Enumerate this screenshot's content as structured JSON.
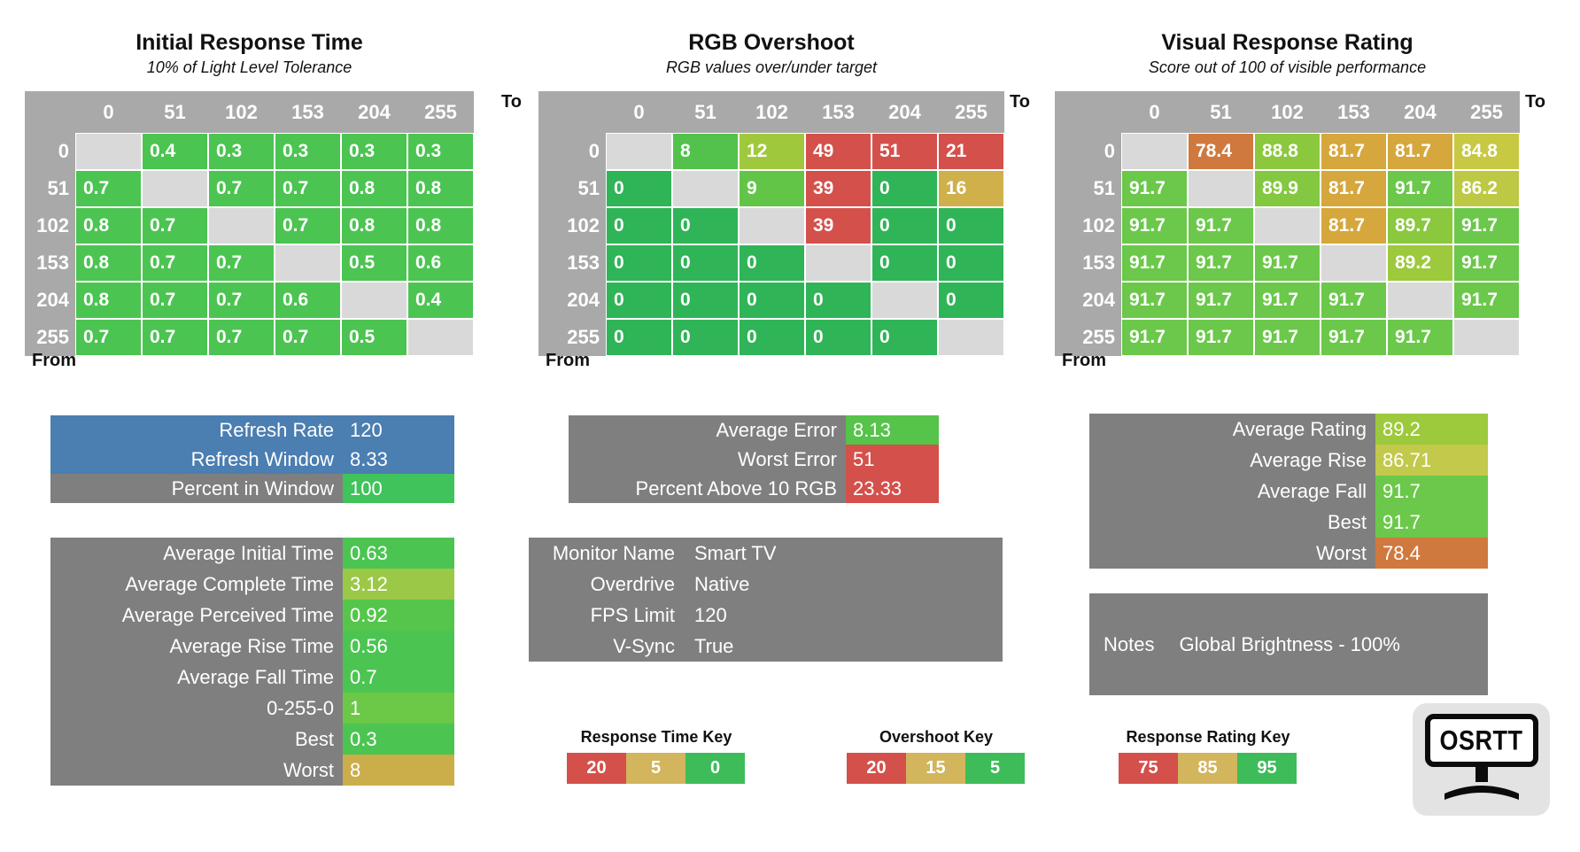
{
  "chart_data": [
    {
      "type": "heatmap",
      "title": "Initial Response Time",
      "subtitle": "10% of Light Level Tolerance",
      "to_label": "To",
      "from_label": "From",
      "levels": [
        "0",
        "51",
        "102",
        "153",
        "204",
        "255"
      ],
      "cells": [
        [
          null,
          "0.4",
          "0.3",
          "0.3",
          "0.3",
          "0.3"
        ],
        [
          "0.7",
          null,
          "0.7",
          "0.7",
          "0.8",
          "0.8"
        ],
        [
          "0.8",
          "0.7",
          null,
          "0.7",
          "0.8",
          "0.8"
        ],
        [
          "0.8",
          "0.7",
          "0.7",
          null,
          "0.5",
          "0.6"
        ],
        [
          "0.8",
          "0.7",
          "0.7",
          "0.6",
          null,
          "0.4"
        ],
        [
          "0.7",
          "0.7",
          "0.7",
          "0.7",
          "0.5",
          null
        ]
      ],
      "colors": [
        [
          null,
          "#4CC452",
          "#4CC452",
          "#4CC452",
          "#4CC452",
          "#4CC452"
        ],
        [
          "#4CC452",
          null,
          "#4CC452",
          "#4CC452",
          "#4CC452",
          "#4CC452"
        ],
        [
          "#4CC452",
          "#4CC452",
          null,
          "#4CC452",
          "#4CC452",
          "#4CC452"
        ],
        [
          "#4CC452",
          "#4CC452",
          "#4CC452",
          null,
          "#4CC452",
          "#4CC452"
        ],
        [
          "#4CC452",
          "#4CC452",
          "#4CC452",
          "#4CC452",
          null,
          "#4CC452"
        ],
        [
          "#4CC452",
          "#4CC452",
          "#4CC452",
          "#4CC452",
          "#4CC452",
          null
        ]
      ]
    },
    {
      "type": "heatmap",
      "title": "RGB Overshoot",
      "subtitle": "RGB values over/under target",
      "to_label": "To",
      "from_label": "From",
      "levels": [
        "0",
        "51",
        "102",
        "153",
        "204",
        "255"
      ],
      "cells": [
        [
          null,
          "8",
          "12",
          "49",
          "51",
          "21"
        ],
        [
          "0",
          null,
          "9",
          "39",
          "0",
          "16"
        ],
        [
          "0",
          "0",
          null,
          "39",
          "0",
          "0"
        ],
        [
          "0",
          "0",
          "0",
          null,
          "0",
          "0"
        ],
        [
          "0",
          "0",
          "0",
          "0",
          null,
          "0"
        ],
        [
          "0",
          "0",
          "0",
          "0",
          "0",
          null
        ]
      ],
      "colors": [
        [
          null,
          "#53C24C",
          "#A0C83D",
          "#D4504B",
          "#D4504B",
          "#D4504B"
        ],
        [
          "#2FB457",
          null,
          "#62C547",
          "#D4504B",
          "#2FB457",
          "#CFB04B"
        ],
        [
          "#2FB457",
          "#2FB457",
          null,
          "#D4504B",
          "#2FB457",
          "#2FB457"
        ],
        [
          "#2FB457",
          "#2FB457",
          "#2FB457",
          null,
          "#2FB457",
          "#2FB457"
        ],
        [
          "#2FB457",
          "#2FB457",
          "#2FB457",
          "#2FB457",
          null,
          "#2FB457"
        ],
        [
          "#2FB457",
          "#2FB457",
          "#2FB457",
          "#2FB457",
          "#2FB457",
          null
        ]
      ]
    },
    {
      "type": "heatmap",
      "title": "Visual Response Rating",
      "subtitle": "Score out of 100 of visible performance",
      "to_label": "To",
      "from_label": "From",
      "levels": [
        "0",
        "51",
        "102",
        "153",
        "204",
        "255"
      ],
      "cells": [
        [
          null,
          "78.4",
          "88.8",
          "81.7",
          "81.7",
          "84.8"
        ],
        [
          "91.7",
          null,
          "89.9",
          "81.7",
          "91.7",
          "86.2"
        ],
        [
          "91.7",
          "91.7",
          null,
          "81.7",
          "89.7",
          "91.7"
        ],
        [
          "91.7",
          "91.7",
          "91.7",
          null,
          "89.2",
          "91.7"
        ],
        [
          "91.7",
          "91.7",
          "91.7",
          "91.7",
          null,
          "91.7"
        ],
        [
          "91.7",
          "91.7",
          "91.7",
          "91.7",
          "91.7",
          null
        ]
      ],
      "colors": [
        [
          null,
          "#D0793E",
          "#8CC83E",
          "#D5A73C",
          "#D5A73C",
          "#C7C942"
        ],
        [
          "#6BC84A",
          null,
          "#83C840",
          "#D5A73C",
          "#6BC84A",
          "#BDC944"
        ],
        [
          "#6BC84A",
          "#6BC84A",
          null,
          "#D5A73C",
          "#8AC83E",
          "#6BC84A"
        ],
        [
          "#6BC84A",
          "#6BC84A",
          "#6BC84A",
          null,
          "#9DC93C",
          "#6BC84A"
        ],
        [
          "#6BC84A",
          "#6BC84A",
          "#6BC84A",
          "#6BC84A",
          null,
          "#6BC84A"
        ],
        [
          "#6BC84A",
          "#6BC84A",
          "#6BC84A",
          "#6BC84A",
          "#6BC84A",
          null
        ]
      ]
    }
  ],
  "panels": {
    "refresh": {
      "rows": [
        {
          "label": "Refresh Rate",
          "value": "120",
          "row_style": "blue"
        },
        {
          "label": "Refresh Window",
          "value": "8.33",
          "row_style": "blue"
        },
        {
          "label": "Percent in Window",
          "value": "100",
          "value_bg": "#3FC35A"
        }
      ]
    },
    "stats": {
      "rows": [
        {
          "label": "Average Initial Time",
          "value": "0.63",
          "value_bg": "#4CC452"
        },
        {
          "label": "Average Complete Time",
          "value": "3.12",
          "value_bg": "#9CC848"
        },
        {
          "label": "Average Perceived Time",
          "value": "0.92",
          "value_bg": "#55C64B"
        },
        {
          "label": "Average Rise Time",
          "value": "0.56",
          "value_bg": "#4CC452"
        },
        {
          "label": "Average Fall Time",
          "value": "0.7",
          "value_bg": "#4CC452"
        },
        {
          "label": "0-255-0",
          "value": "1",
          "value_bg": "#6CC847"
        },
        {
          "label": "Best",
          "value": "0.3",
          "value_bg": "#4CC452"
        },
        {
          "label": "Worst",
          "value": "8",
          "value_bg": "#CBAD4A"
        }
      ]
    },
    "error": {
      "rows": [
        {
          "label": "Average Error",
          "value": "8.13",
          "value_bg": "#56C34A"
        },
        {
          "label": "Worst Error",
          "value": "51",
          "value_bg": "#D4504B"
        },
        {
          "label": "Percent Above 10 RGB",
          "value": "23.33",
          "value_bg": "#D4504B"
        }
      ]
    },
    "monitor": {
      "rows": [
        {
          "label": "Monitor Name",
          "value": "Smart TV"
        },
        {
          "label": "Overdrive",
          "value": "Native"
        },
        {
          "label": "FPS Limit",
          "value": "120"
        },
        {
          "label": "V-Sync",
          "value": "True"
        }
      ]
    },
    "rating": {
      "rows": [
        {
          "label": "Average Rating",
          "value": "89.2",
          "value_bg": "#9DC93C"
        },
        {
          "label": "Average Rise",
          "value": "86.71",
          "value_bg": "#C2C94B"
        },
        {
          "label": "Average Fall",
          "value": "91.7",
          "value_bg": "#6BC84A"
        },
        {
          "label": "Best",
          "value": "91.7",
          "value_bg": "#6BC84A"
        },
        {
          "label": "Worst",
          "value": "78.4",
          "value_bg": "#D0793E"
        }
      ]
    },
    "notes": {
      "label": "Notes",
      "value": "Global Brightness - 100%"
    }
  },
  "keys": [
    {
      "title": "Response Time Key",
      "cells": [
        {
          "value": "20",
          "bg": "#D4504B"
        },
        {
          "value": "5",
          "bg": "#D2B55C"
        },
        {
          "value": "0",
          "bg": "#3DBC59"
        }
      ]
    },
    {
      "title": "Overshoot Key",
      "cells": [
        {
          "value": "20",
          "bg": "#D4504B"
        },
        {
          "value": "15",
          "bg": "#D2B55C"
        },
        {
          "value": "5",
          "bg": "#3DBC59"
        }
      ]
    },
    {
      "title": "Response Rating Key",
      "cells": [
        {
          "value": "75",
          "bg": "#D4504B"
        },
        {
          "value": "85",
          "bg": "#D2B55C"
        },
        {
          "value": "95",
          "bg": "#3DBC59"
        }
      ]
    }
  ],
  "logo": {
    "text": "OSRTT"
  },
  "colors": {
    "header_gray": "#A9A9A9",
    "diagonal_gray": "#D9D9D9",
    "panel_gray": "#7F7F7F",
    "blue": "#4B7EB1",
    "red": "#D4504B",
    "gold": "#D2B55C",
    "green": "#3DBC59"
  }
}
